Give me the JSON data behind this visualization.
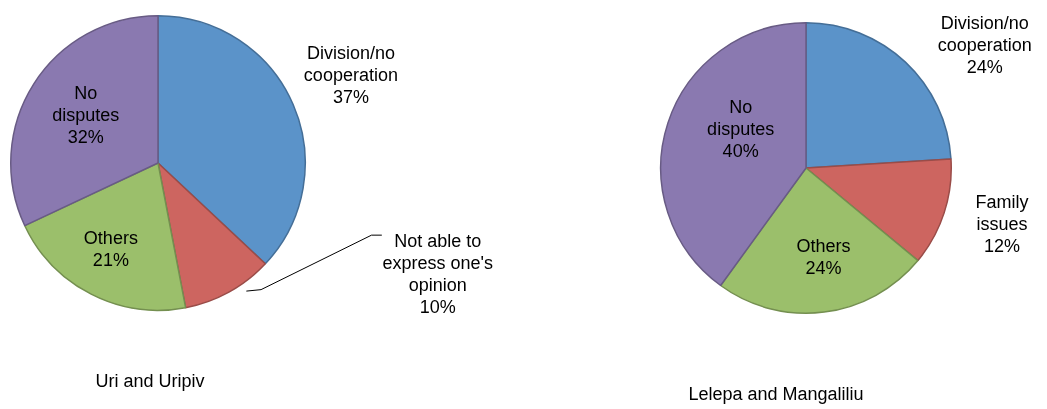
{
  "chart_data": [
    {
      "type": "pie",
      "title": "Uri and Uripiv",
      "categories": [
        "Division/no cooperation",
        "Not able to express one's opinion",
        "Others",
        "No disputes"
      ],
      "values": [
        37,
        10,
        21,
        32
      ],
      "value_labels": [
        "37%",
        "10%",
        "21%",
        "32%"
      ],
      "colors": [
        "#5b93c9",
        "#cd6560",
        "#9bbf6b",
        "#8a79b0"
      ],
      "legend": false
    },
    {
      "type": "pie",
      "title": "Lelepa and Mangaliliu",
      "categories": [
        "Division/no cooperation",
        "Family issues",
        "Others",
        "No disputes"
      ],
      "values": [
        24,
        12,
        24,
        40
      ],
      "value_labels": [
        "24%",
        "12%",
        "24%",
        "40%"
      ],
      "colors": [
        "#5b93c9",
        "#cd6560",
        "#9bbf6b",
        "#8a79b0"
      ],
      "legend": false
    }
  ]
}
